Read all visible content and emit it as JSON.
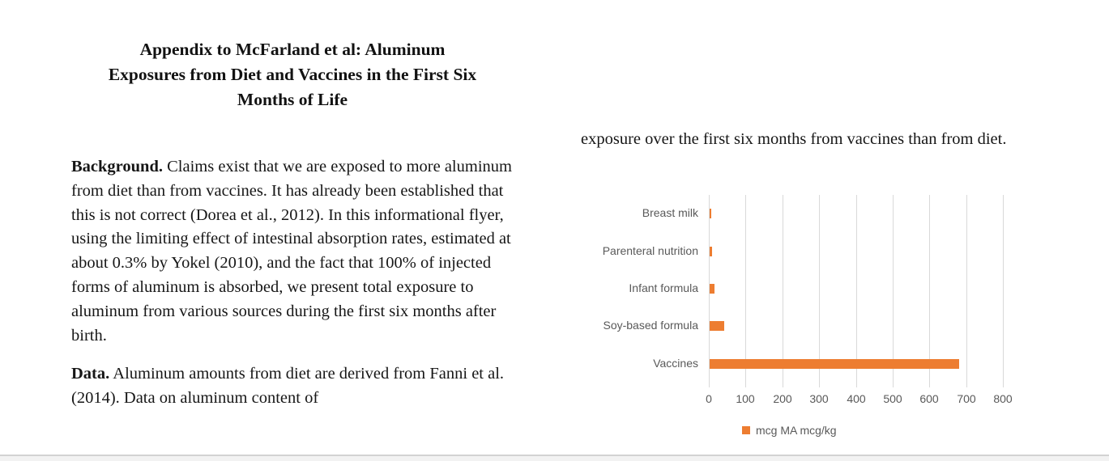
{
  "document": {
    "title_lines": [
      "Appendix to McFarland  et al: Aluminum",
      "Exposures from Diet and Vaccines in the First Six",
      "Months of Life"
    ],
    "background": {
      "lead": "Background.",
      "text": " Claims exist that we are exposed to more aluminum from diet than from vaccines.  It has already been established that this is not correct (Dorea et al., 2012). In this informational flyer, using the limiting effect of intestinal absorption rates, estimated at about 0.3% by Yokel (2010), and the fact that 100% of injected forms of aluminum is absorbed, we present total exposure to aluminum from various sources during the first six months after birth."
    },
    "data_section": {
      "lead": "Data.",
      "text": " Aluminum amounts from diet are derived from Fanni et al. (2014).  Data on aluminum content of"
    },
    "continuation_text": "exposure over the first six months from vaccines than from diet."
  },
  "chart_data": {
    "type": "bar",
    "orientation": "horizontal",
    "title": "",
    "xlabel": "",
    "ylabel": "",
    "categories": [
      "Breast milk",
      "Parenteral nutrition",
      "Infant formula",
      "Soy-based formula",
      "Vaccines"
    ],
    "values": [
      5,
      6,
      14,
      40,
      678
    ],
    "xlim": [
      0,
      800
    ],
    "x_ticks": [
      0,
      100,
      200,
      300,
      400,
      500,
      600,
      700,
      800
    ],
    "grid": true,
    "legend_position": "bottom",
    "legend": [
      {
        "label": "mcg MA mcg/kg",
        "color": "#ED7D31"
      }
    ],
    "bar_color": "#ED7D31",
    "gridline_color": "#d9d9d9",
    "label_color": "#595959"
  }
}
